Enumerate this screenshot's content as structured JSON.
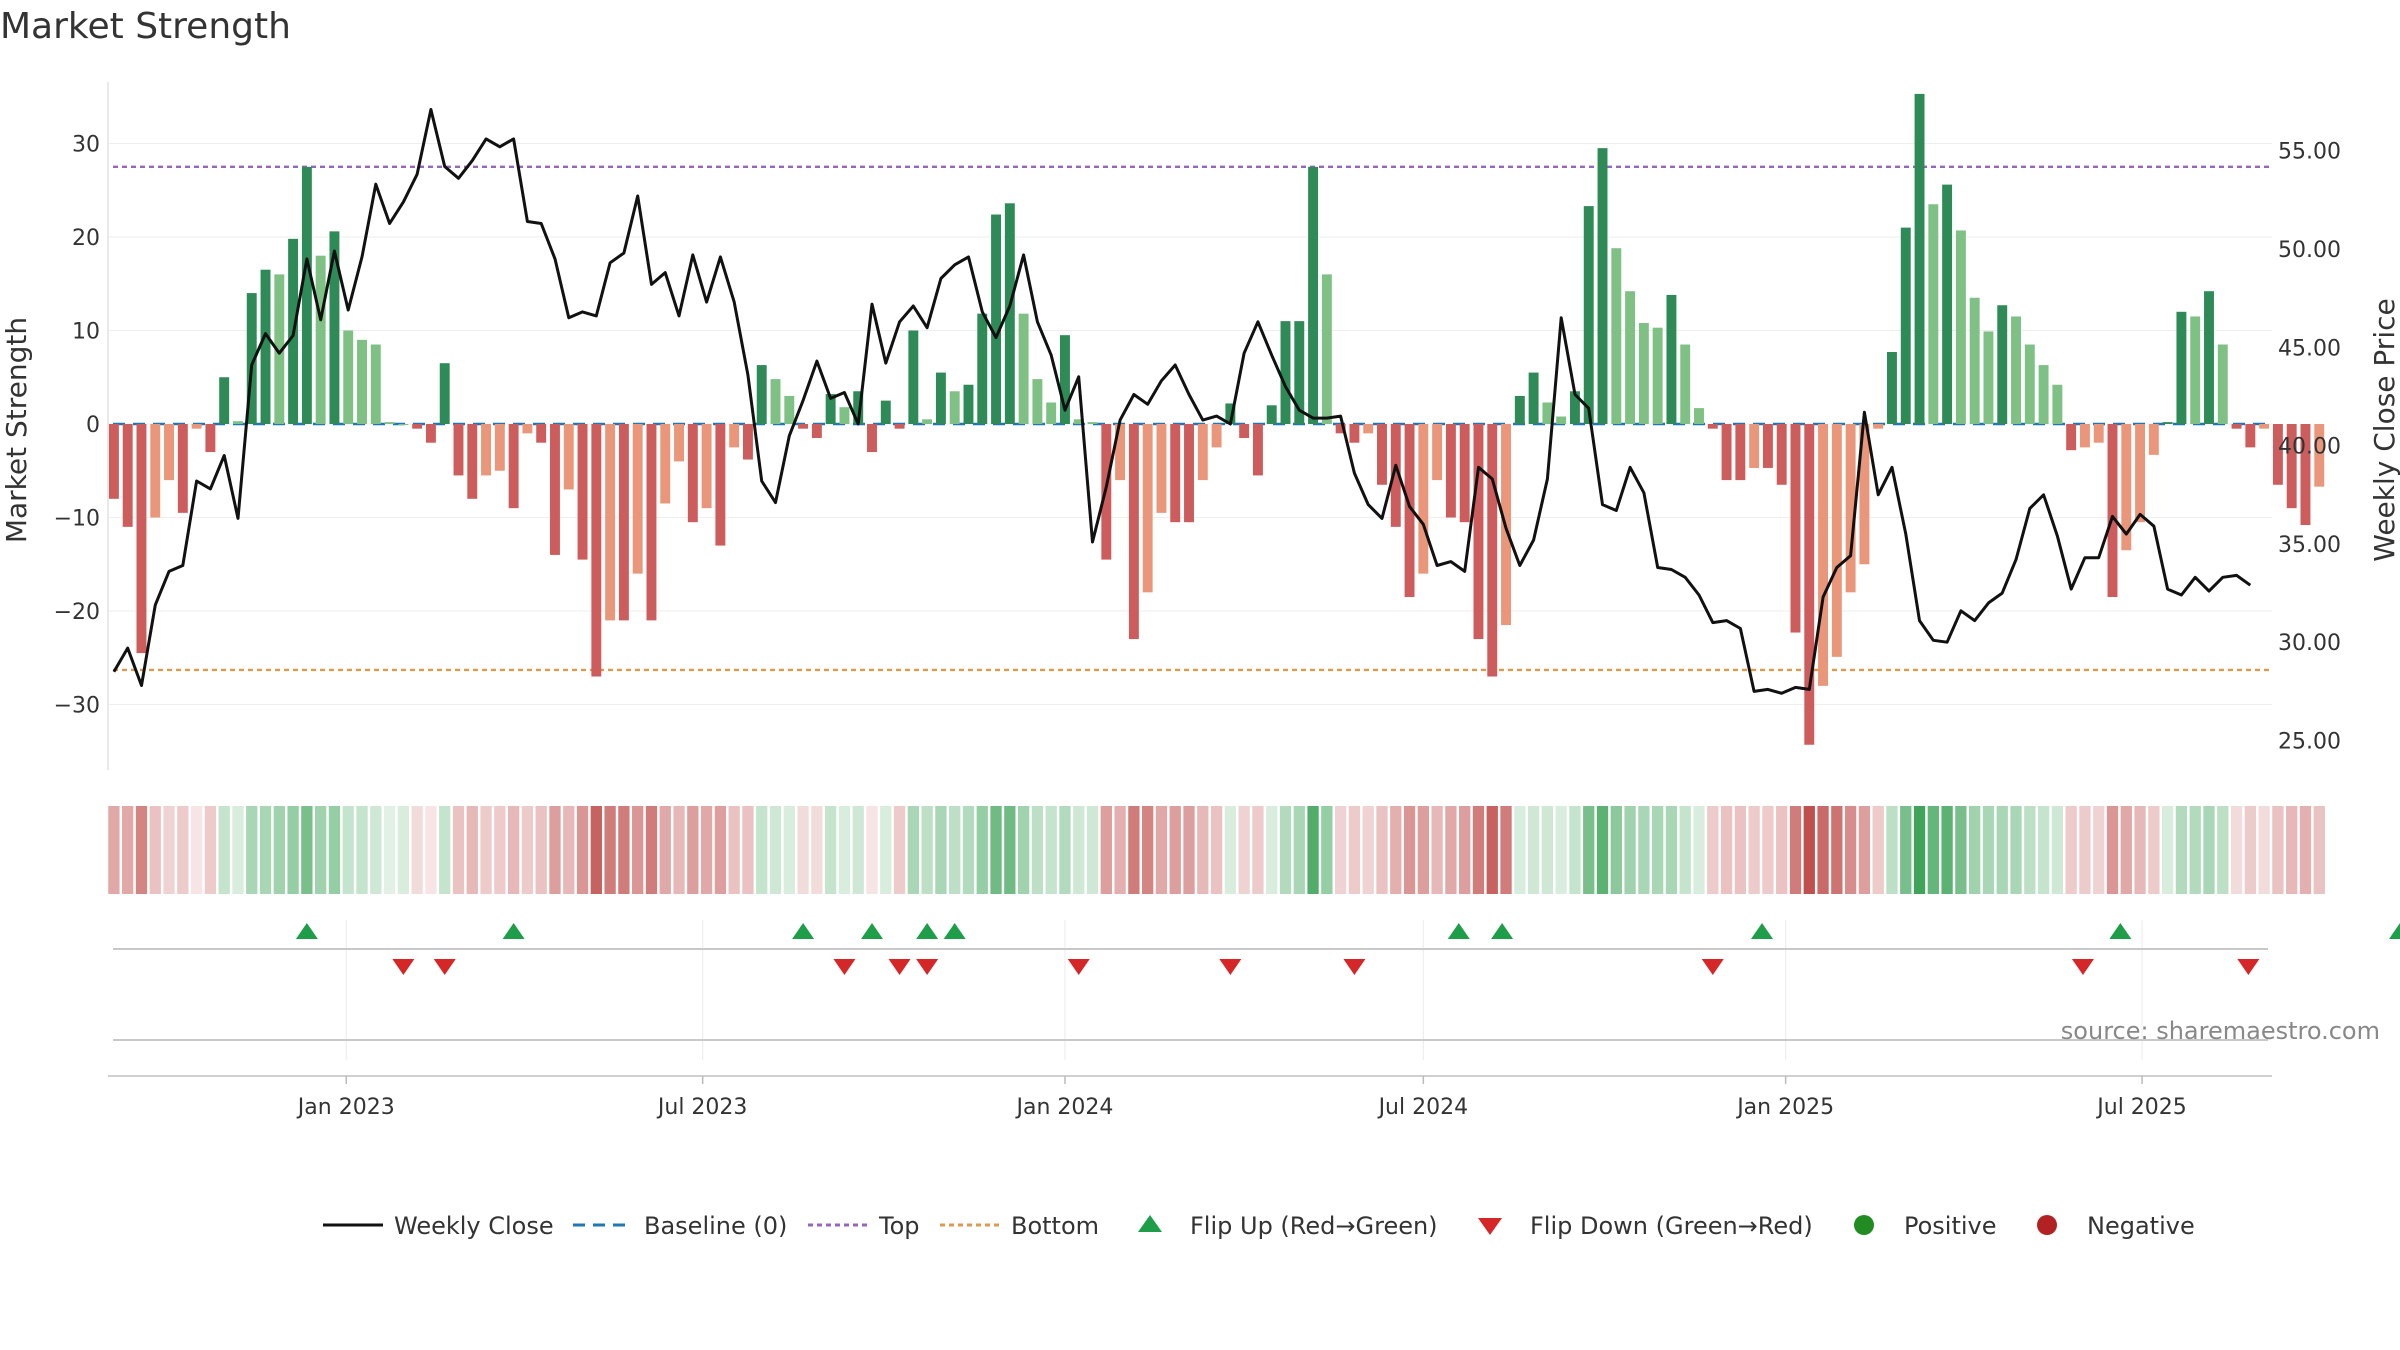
{
  "chart_data": {
    "type": "bar",
    "title": "Market Strength",
    "ylabel": "Market Strength",
    "y2label": "Weekly Close Price",
    "ylim": [
      -37,
      37
    ],
    "y2lim": [
      23.5,
      58.7
    ],
    "yticks": [
      30,
      20,
      10,
      0,
      -10,
      -20,
      -30
    ],
    "ytick_labels": [
      "30",
      "20",
      "10",
      "0",
      "−10",
      "−20",
      "−30"
    ],
    "y2ticks": [
      55,
      50,
      45,
      40,
      35,
      30,
      25
    ],
    "y2tick_labels": [
      "55.00",
      "50.00",
      "45.00",
      "40.00",
      "35.00",
      "30.00",
      "25.00"
    ],
    "x_start": "2022-09-05",
    "x_range_days": [
      -3,
      1096
    ],
    "xticks": [
      {
        "label": "Jan 2023",
        "day": 118
      },
      {
        "label": "Jul 2023",
        "day": 299
      },
      {
        "label": "Jan 2024",
        "day": 483
      },
      {
        "label": "Jul 2024",
        "day": 665
      },
      {
        "label": "Jan 2025",
        "day": 849
      },
      {
        "label": "Jul 2025",
        "day": 1030
      }
    ],
    "top_level": 27.5,
    "bottom_level": -26.3,
    "strength": [
      -8,
      -11,
      -24.5,
      -10,
      -6,
      -9.5,
      -0.5,
      -3,
      5,
      0.3,
      14,
      16.5,
      16,
      19.8,
      27.5,
      18,
      20.6,
      10,
      9,
      8.5,
      0.2,
      0,
      -0.5,
      -2,
      6.5,
      -5.5,
      -8,
      -5.5,
      -5,
      -9,
      -1,
      -2,
      -14,
      -7,
      -14.5,
      -27,
      -21,
      -21,
      -16,
      -21,
      -8.5,
      -4,
      -10.5,
      -9,
      -13,
      -2.5,
      -3.8,
      6.3,
      4.8,
      3,
      -0.5,
      -1.5,
      3.2,
      1.8,
      3.5,
      -3,
      2.5,
      -0.5,
      10,
      0.5,
      5.5,
      3.5,
      4.2,
      11.8,
      22.4,
      23.6,
      11.8,
      4.8,
      2.3,
      9.5,
      0.5,
      0.2,
      -14.5,
      -6,
      -23,
      -18,
      -9.5,
      -10.5,
      -10.5,
      -6,
      -2.5,
      2.2,
      -1.5,
      -5.5,
      2,
      11,
      11,
      27.5,
      16,
      -1,
      -2,
      -1,
      -6.5,
      -11,
      -18.5,
      -16,
      -6,
      -10,
      -10.5,
      -23,
      -27,
      -21.5,
      3,
      5.5,
      2.3,
      0.8,
      3.5,
      23.3,
      29.5,
      18.8,
      14.2,
      10.8,
      10.3,
      13.8,
      8.5,
      1.7,
      -0.5,
      -6,
      -6,
      -4.7,
      -4.7,
      -6.5,
      -22.3,
      -34.3,
      -28,
      -24.9,
      -18,
      -15,
      -0.5,
      7.7,
      21,
      35.3,
      23.5,
      25.6,
      20.7,
      13.5,
      9.9,
      12.7,
      11.5,
      8.5,
      6.3,
      4.2,
      -2.8,
      -2.5,
      -2,
      -18.5,
      -13.5,
      -10.5,
      -3.3,
      0.2,
      12,
      11.5,
      14.2,
      8.5,
      -0.5,
      -2.5,
      -0.5,
      -6.5,
      -9,
      -10.8,
      -6.7
    ],
    "close": [
      28.5,
      29.7,
      27.8,
      31.9,
      33.6,
      33.9,
      38.2,
      37.8,
      39.5,
      36.3,
      44.1,
      45.7,
      44.7,
      45.6,
      49.5,
      46.4,
      49.9,
      46.9,
      49.6,
      53.3,
      51.3,
      52.4,
      53.8,
      57.1,
      54.2,
      53.6,
      54.5,
      55.6,
      55.2,
      55.6,
      51.4,
      51.3,
      49.5,
      46.5,
      46.8,
      46.6,
      49.3,
      49.8,
      52.7,
      48.2,
      48.8,
      46.6,
      49.7,
      47.3,
      49.6,
      47.3,
      43.6,
      38.2,
      37.1,
      40.5,
      42.3,
      44.3,
      42.4,
      42.7,
      41.1,
      47.2,
      44.2,
      46.3,
      47.1,
      46.0,
      48.5,
      49.2,
      49.6,
      46.8,
      45.5,
      47.1,
      49.7,
      46.3,
      44.6,
      41.8,
      43.5,
      35.1,
      37.9,
      41.3,
      42.6,
      42.1,
      43.3,
      44.1,
      42.6,
      41.3,
      41.5,
      41.1,
      44.7,
      46.3,
      44.6,
      43.0,
      41.8,
      41.4,
      41.4,
      41.5,
      38.6,
      37.0,
      36.3,
      39.0,
      36.9,
      36.0,
      33.9,
      34.1,
      33.6,
      38.9,
      38.3,
      35.8,
      33.9,
      35.2,
      38.3,
      46.5,
      42.6,
      41.9,
      37.0,
      36.7,
      38.9,
      37.6,
      33.8,
      33.7,
      33.3,
      32.4,
      31.0,
      31.1,
      30.7,
      27.5,
      27.6,
      27.4,
      27.7,
      27.6,
      32.3,
      33.8,
      34.4,
      41.7,
      37.5,
      38.9,
      35.5,
      31.1,
      30.1,
      30.0,
      31.6,
      31.1,
      32.0,
      32.5,
      34.2,
      36.8,
      37.5,
      35.4,
      32.7,
      34.3,
      34.3,
      36.4,
      35.5,
      36.5,
      35.9,
      32.7,
      32.4,
      33.3,
      32.6,
      33.3,
      33.4,
      32.9
    ],
    "strip_intensity": [
      0.5,
      0.5,
      0.7,
      0.35,
      0.25,
      0.3,
      0.15,
      0.3,
      0.3,
      0.2,
      0.45,
      0.45,
      0.5,
      0.55,
      0.7,
      0.5,
      0.55,
      0.3,
      0.3,
      0.25,
      0.15,
      0.2,
      0.2,
      0.15,
      0.3,
      0.35,
      0.4,
      0.3,
      0.3,
      0.4,
      0.3,
      0.35,
      0.55,
      0.4,
      0.6,
      0.9,
      0.75,
      0.75,
      0.6,
      0.75,
      0.5,
      0.4,
      0.55,
      0.5,
      0.55,
      0.35,
      0.35,
      0.3,
      0.25,
      0.2,
      0.2,
      0.2,
      0.3,
      0.2,
      0.25,
      0.15,
      0.2,
      0.3,
      0.45,
      0.35,
      0.45,
      0.35,
      0.4,
      0.55,
      0.75,
      0.75,
      0.5,
      0.35,
      0.3,
      0.4,
      0.25,
      0.25,
      0.55,
      0.45,
      0.75,
      0.7,
      0.5,
      0.55,
      0.55,
      0.4,
      0.35,
      0.2,
      0.25,
      0.3,
      0.2,
      0.4,
      0.45,
      0.9,
      0.55,
      0.25,
      0.3,
      0.25,
      0.35,
      0.45,
      0.6,
      0.55,
      0.4,
      0.5,
      0.55,
      0.75,
      0.9,
      0.75,
      0.2,
      0.25,
      0.25,
      0.2,
      0.3,
      0.7,
      0.85,
      0.6,
      0.5,
      0.45,
      0.45,
      0.45,
      0.3,
      0.2,
      0.3,
      0.35,
      0.35,
      0.3,
      0.3,
      0.35,
      0.75,
      1.0,
      0.85,
      0.8,
      0.65,
      0.55,
      0.3,
      0.35,
      0.7,
      1.0,
      0.8,
      0.85,
      0.7,
      0.5,
      0.45,
      0.45,
      0.45,
      0.35,
      0.3,
      0.25,
      0.3,
      0.3,
      0.25,
      0.6,
      0.5,
      0.4,
      0.3,
      0.2,
      0.4,
      0.4,
      0.45,
      0.35,
      0.2,
      0.3,
      0.2,
      0.35,
      0.4,
      0.45,
      0.35
    ],
    "flip_up_days": [
      98,
      203,
      350,
      385,
      413,
      427,
      683,
      705,
      837,
      1019,
      1161
    ],
    "flip_down_days": [
      147,
      168,
      371,
      399,
      413,
      490,
      567,
      630,
      812,
      1000,
      1084
    ],
    "flip_up_label": "Flip Up (Red→Green)",
    "flip_down_label": "Flip Down (Green→Red)",
    "legend": [
      "Weekly Close",
      "Baseline (0)",
      "Top",
      "Bottom",
      "Flip Up (Red→Green)",
      "Flip Down (Green→Red)",
      "Positive",
      "Negative"
    ],
    "legend_position": "bottom-center",
    "source": "source: sharemaestro.com"
  },
  "colors": {
    "positive_strong": "#2e8b57",
    "positive_light": "#7fc184",
    "negative_strong": "#cd5c5c",
    "negative_light": "#e9967a",
    "close_line": "#111111",
    "baseline": "#1f77b4",
    "top_line": "#9467bd",
    "bottom_line": "#dd9a4e",
    "flip_up": "#1f9e4a",
    "flip_down": "#d62728",
    "positive_dot": "#228b22",
    "negative_dot": "#b22222"
  }
}
